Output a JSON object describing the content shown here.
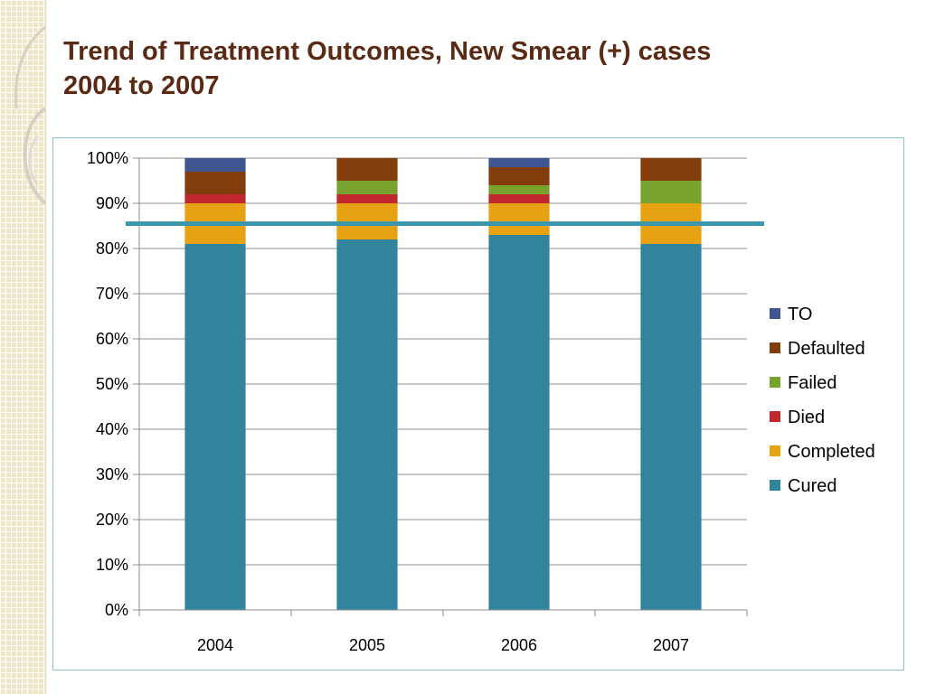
{
  "slide": {
    "title_line1": "Trend of Treatment Outcomes,  New Smear (+) cases",
    "title_line2": "2004 to 2007"
  },
  "chart_data": {
    "type": "bar",
    "stacked": true,
    "percent_axis": true,
    "categories": [
      "2004",
      "2005",
      "2006",
      "2007"
    ],
    "series": [
      {
        "name": "Cured",
        "color": "#31849b",
        "values": [
          81,
          82,
          83,
          81
        ]
      },
      {
        "name": "Completed",
        "color": "#e6a210",
        "values": [
          9,
          8,
          7,
          9
        ]
      },
      {
        "name": "Died",
        "color": "#c0282d",
        "values": [
          2,
          2,
          2,
          0
        ]
      },
      {
        "name": "Failed",
        "color": "#77a22e",
        "values": [
          0,
          3,
          2,
          5
        ]
      },
      {
        "name": "Defaulted",
        "color": "#833c0b",
        "values": [
          5,
          5,
          4,
          5
        ]
      },
      {
        "name": "TO",
        "color": "#3f5591",
        "values": [
          3,
          0,
          2,
          0
        ]
      }
    ],
    "ylim": [
      0,
      100
    ],
    "yticks": [
      "0%",
      "10%",
      "20%",
      "30%",
      "40%",
      "50%",
      "60%",
      "70%",
      "80%",
      "90%",
      "100%"
    ],
    "grid": true,
    "legend_position": "right",
    "reference_line": {
      "value": 85.5,
      "color": "#3b98ac"
    }
  }
}
